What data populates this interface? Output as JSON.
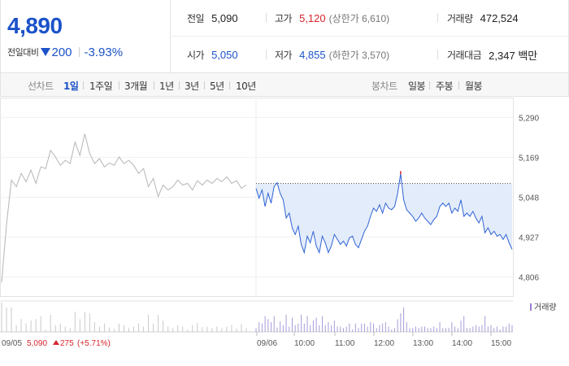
{
  "summary": {
    "price": "4,890",
    "change_label": "전일대비",
    "change_value": "200",
    "change_percent": "-3.93%",
    "prev_close": {
      "label": "전일",
      "value": "5,090"
    },
    "high": {
      "label": "고가",
      "value": "5,120",
      "sub": "(상한가 6,610)"
    },
    "volume": {
      "label": "거래량",
      "value": "472,524"
    },
    "open": {
      "label": "시가",
      "value": "5,050"
    },
    "low": {
      "label": "저가",
      "value": "4,855",
      "sub": "(하한가 3,570)"
    },
    "amount": {
      "label": "거래대금",
      "value": "2,347 백만"
    }
  },
  "tabs": {
    "line_label": "선차트",
    "line": [
      "1일",
      "1주일",
      "3개월",
      "1년",
      "3년",
      "5년",
      "10년"
    ],
    "line_active": 0,
    "candle_label": "봉차트",
    "candle": [
      "일봉",
      "주봉",
      "월봉"
    ]
  },
  "colors": {
    "up": "#d8262d",
    "down": "#1b52c9",
    "prev_line": "#b5b5b5",
    "today_line": "#2f63d6",
    "fill": "#e3ecfa"
  },
  "chart_data": {
    "type": "line",
    "ylim": [
      4746,
      5350
    ],
    "y_ticks": [
      "5,290",
      "5,169",
      "5,048",
      "4,927",
      "4,806"
    ],
    "x_labels": [
      "09/05",
      "09/06",
      "10:00",
      "11:00",
      "12:00",
      "13:00",
      "14:00",
      "15:00"
    ],
    "volume_legend": "거래량",
    "prev_day_note": {
      "date": "09/05",
      "close": "5,090",
      "change": "275",
      "percent": "(+5.71%)"
    },
    "reference_price": 5090,
    "series": [
      {
        "values": [
          4790,
          4965,
          5100,
          5080,
          5120,
          5095,
          5130,
          5090,
          5140,
          5135,
          5190,
          5170,
          5145,
          5160,
          5150,
          5215,
          5175,
          5240,
          5180,
          5150,
          5165,
          5140,
          5152,
          5145,
          5170,
          5150,
          5160,
          5145,
          5120,
          5135,
          5080,
          5105,
          5050,
          5085,
          5070,
          5080,
          5100,
          5085,
          5090,
          5070,
          5098,
          5085,
          5100,
          5090,
          5105,
          5095,
          5110,
          5090,
          5098,
          5075,
          5085
        ]
      },
      {
        "values": [
          5075,
          5045,
          5070,
          5020,
          5060,
          5030,
          5080,
          5092,
          5060,
          5040,
          4985,
          5000,
          4955,
          4935,
          4960,
          4905,
          4880,
          4930,
          4910,
          4945,
          4900,
          4880,
          4930,
          4910,
          4880,
          4900,
          4935,
          4920,
          4905,
          4915,
          4900,
          4925,
          4930,
          4905,
          4895,
          4920,
          4945,
          4960,
          4990,
          5015,
          5005,
          5025,
          5000,
          5030,
          5015,
          5010,
          5020,
          5060,
          5120,
          5040,
          5010,
          5000,
          4990,
          4975,
          4985,
          5000,
          4985,
          4975,
          4965,
          4980,
          4990,
          5020,
          5030,
          5020,
          5030,
          5000,
          5015,
          5005,
          5040,
          4990,
          5000,
          4990,
          5005,
          4985,
          4970,
          4990,
          4940,
          4955,
          4935,
          4945,
          4930,
          4935,
          4920,
          4935,
          4910,
          4890
        ]
      }
    ]
  }
}
